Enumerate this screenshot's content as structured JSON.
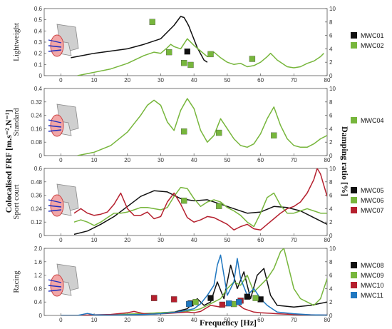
{
  "colors": {
    "black": "#111111",
    "green": "#77b63c",
    "red": "#b5202e",
    "blue": "#1f77c0"
  },
  "chart_data": {
    "type": "line",
    "xlabel": "Frequency [Hz]",
    "ylabel_left": "Colocalised FRF [m.s⁻².N⁻¹]",
    "ylabel_right": "Damping ratio [%]",
    "xlim": [
      -5,
      80
    ],
    "xticks": [
      "0",
      "10",
      "20",
      "30",
      "40",
      "50",
      "60",
      "70",
      "80"
    ],
    "panels": [
      {
        "name": "Lightweight",
        "ylim": [
          0,
          0.6
        ],
        "yticks": [
          "0",
          "0.1",
          "0.2",
          "0.3",
          "0.4",
          "0.5",
          "0.6"
        ],
        "y2lim": [
          0,
          10
        ],
        "y2ticks": [
          "0",
          "2",
          "4",
          "6",
          "8",
          "10"
        ],
        "series": [
          {
            "name": "MWC01",
            "color": "black",
            "x": [
              3,
              10,
              20,
              25,
              30,
              34,
              36,
              37,
              38,
              38.5,
              39,
              41,
              43,
              44
            ],
            "y": [
              0.16,
              0.2,
              0.24,
              0.28,
              0.33,
              0.45,
              0.53,
              0.52,
              0.47,
              0.44,
              0.4,
              0.25,
              0.14,
              0.12
            ]
          },
          {
            "name": "MWC02",
            "color": "green",
            "x": [
              5,
              10,
              15,
              20,
              25,
              28,
              30,
              32,
              33,
              34,
              36,
              38,
              40,
              42,
              44,
              46,
              48,
              50,
              52,
              54,
              56,
              58,
              60,
              62,
              63,
              64,
              65,
              66,
              68,
              70,
              72,
              74,
              76,
              78,
              79
            ],
            "y": [
              0,
              0.03,
              0.06,
              0.11,
              0.18,
              0.21,
              0.2,
              0.25,
              0.28,
              0.26,
              0.24,
              0.33,
              0.27,
              0.22,
              0.17,
              0.21,
              0.16,
              0.12,
              0.1,
              0.11,
              0.08,
              0.09,
              0.12,
              0.17,
              0.2,
              0.17,
              0.14,
              0.12,
              0.08,
              0.07,
              0.08,
              0.11,
              0.13,
              0.17,
              0.2
            ]
          }
        ],
        "markers": [
          {
            "series": "MWC01",
            "x": 38,
            "y": 3.6
          },
          {
            "series": "MWC02",
            "x": 27.5,
            "y": 8
          },
          {
            "series": "MWC02",
            "x": 32.5,
            "y": 3.5
          },
          {
            "series": "MWC02",
            "x": 37,
            "y": 1.9
          },
          {
            "series": "MWC02",
            "x": 39,
            "y": 1.6
          },
          {
            "series": "MWC02",
            "x": 45,
            "y": 3.2
          },
          {
            "series": "MWC02",
            "x": 57.5,
            "y": 2.5
          }
        ]
      },
      {
        "name": "Standard",
        "ylim": [
          0,
          0.4
        ],
        "yticks": [
          "0",
          "0.08",
          "0.16",
          "0.24",
          "0.32",
          "0.4"
        ],
        "y2lim": [
          0,
          10
        ],
        "y2ticks": [
          "0",
          "2",
          "4",
          "6",
          "8",
          "10"
        ],
        "series": [
          {
            "name": "MWC04",
            "color": "green",
            "x": [
              5,
              10,
              15,
              20,
              22,
              24,
              26,
              28,
              30,
              32,
              34,
              36,
              38,
              40,
              42,
              44,
              46,
              48,
              50,
              52,
              54,
              56,
              58,
              60,
              62,
              64,
              66,
              68,
              70,
              72,
              74,
              76,
              78,
              80
            ],
            "y": [
              0,
              0.02,
              0.06,
              0.14,
              0.19,
              0.24,
              0.3,
              0.33,
              0.3,
              0.2,
              0.15,
              0.27,
              0.34,
              0.28,
              0.15,
              0.08,
              0.12,
              0.22,
              0.16,
              0.1,
              0.06,
              0.05,
              0.07,
              0.13,
              0.22,
              0.29,
              0.18,
              0.1,
              0.06,
              0.05,
              0.05,
              0.07,
              0.1,
              0.12
            ]
          }
        ],
        "markers": [
          {
            "series": "MWC04",
            "x": 37,
            "y": 3.6
          },
          {
            "series": "MWC04",
            "x": 47.5,
            "y": 3.4
          },
          {
            "series": "MWC04",
            "x": 64,
            "y": 3.0
          }
        ]
      },
      {
        "name": "Sport court",
        "ylim": [
          0,
          0.6
        ],
        "yticks": [
          "0",
          "0.12",
          "0.24",
          "0.36",
          "0.48",
          "0.6"
        ],
        "y2lim": [
          0,
          10
        ],
        "y2ticks": [
          "0",
          "2",
          "4",
          "6",
          "8",
          "10"
        ],
        "series": [
          {
            "name": "MWC05",
            "color": "black",
            "x": [
              4,
              8,
              12,
              16,
              20,
              24,
              28,
              32,
              36,
              40,
              44,
              48,
              52,
              56,
              60,
              64,
              68,
              72,
              76,
              80
            ],
            "y": [
              0.01,
              0.04,
              0.1,
              0.17,
              0.26,
              0.35,
              0.4,
              0.39,
              0.33,
              0.31,
              0.32,
              0.28,
              0.24,
              0.2,
              0.21,
              0.26,
              0.25,
              0.22,
              0.16,
              0.1
            ]
          },
          {
            "name": "MWC06",
            "color": "green",
            "x": [
              4,
              6,
              8,
              10,
              12,
              14,
              16,
              18,
              20,
              22,
              24,
              26,
              28,
              30,
              32,
              34,
              36,
              38,
              40,
              42,
              44,
              46,
              48,
              50,
              52,
              54,
              56,
              58,
              60,
              62,
              64,
              66,
              68,
              70,
              72,
              74,
              76,
              78,
              80
            ],
            "y": [
              0.12,
              0.14,
              0.12,
              0.09,
              0.12,
              0.16,
              0.2,
              0.2,
              0.21,
              0.23,
              0.25,
              0.25,
              0.24,
              0.23,
              0.25,
              0.35,
              0.43,
              0.42,
              0.33,
              0.26,
              0.3,
              0.32,
              0.3,
              0.25,
              0.22,
              0.18,
              0.12,
              0.08,
              0.2,
              0.34,
              0.38,
              0.27,
              0.2,
              0.2,
              0.22,
              0.24,
              0.22,
              0.2,
              0.2
            ]
          },
          {
            "name": "MWC07",
            "color": "red",
            "x": [
              4,
              6,
              8,
              10,
              12,
              14,
              16,
              18,
              20,
              22,
              24,
              26,
              28,
              30,
              32,
              34,
              36,
              38,
              40,
              42,
              44,
              46,
              48,
              50,
              52,
              54,
              56,
              58,
              60,
              62,
              64,
              66,
              68,
              70,
              72,
              74,
              76,
              77,
              78,
              79,
              80
            ],
            "y": [
              0.2,
              0.24,
              0.2,
              0.18,
              0.19,
              0.21,
              0.28,
              0.38,
              0.24,
              0.18,
              0.18,
              0.21,
              0.15,
              0.17,
              0.3,
              0.38,
              0.28,
              0.16,
              0.12,
              0.14,
              0.17,
              0.16,
              0.13,
              0.1,
              0.05,
              0.08,
              0.1,
              0.06,
              0.05,
              0.1,
              0.15,
              0.2,
              0.24,
              0.26,
              0.3,
              0.38,
              0.5,
              0.6,
              0.55,
              0.45,
              0.35
            ]
          }
        ],
        "markers": [
          {
            "series": "MWC06",
            "x": 37,
            "y": 5.2
          },
          {
            "series": "MWC06",
            "x": 47.5,
            "y": 4.4
          }
        ]
      },
      {
        "name": "Racing",
        "ylim": [
          0,
          2
        ],
        "yticks": [
          "0",
          "0.4",
          "0.8",
          "1.2",
          "1.6",
          "2.0"
        ],
        "y2lim": [
          0,
          10
        ],
        "y2ticks": [
          "0",
          "2",
          "4",
          "6",
          "8",
          "10"
        ],
        "series": [
          {
            "name": "MWC08",
            "color": "black",
            "x": [
              0,
              5,
              10,
              15,
              20,
              25,
              30,
              34,
              38,
              41,
              43,
              45,
              47,
              49,
              51,
              53,
              55,
              57,
              59,
              61,
              63,
              65,
              70,
              75,
              80
            ],
            "y": [
              0,
              0,
              0.01,
              0.02,
              0.03,
              0.05,
              0.08,
              0.1,
              0.2,
              0.5,
              0.3,
              0.4,
              1.0,
              0.5,
              1.5,
              0.8,
              1.3,
              0.5,
              1.2,
              1.4,
              0.6,
              0.3,
              0.25,
              0.3,
              0.4
            ]
          },
          {
            "name": "MWC09",
            "color": "green",
            "x": [
              0,
              5,
              10,
              15,
              20,
              25,
              30,
              35,
              40,
              42,
              44,
              46,
              48,
              50,
              52,
              54,
              56,
              58,
              60,
              62,
              64,
              66,
              67,
              68,
              70,
              72,
              74,
              76,
              78,
              80
            ],
            "y": [
              0,
              0,
              0.01,
              0.02,
              0.04,
              0.06,
              0.08,
              0.1,
              0.15,
              0.2,
              0.3,
              0.4,
              0.5,
              0.8,
              1.0,
              0.9,
              1.2,
              0.7,
              0.9,
              1.1,
              1.4,
              1.9,
              2.0,
              1.6,
              0.8,
              0.5,
              0.4,
              0.3,
              0.5,
              1.1
            ]
          },
          {
            "name": "MWC10",
            "color": "red",
            "x": [
              0,
              5,
              10,
              15,
              20,
              22,
              25,
              28,
              32,
              35,
              38,
              40,
              42,
              45,
              48,
              50,
              53,
              55,
              58,
              60,
              65,
              70,
              75,
              80
            ],
            "y": [
              0,
              0,
              0.02,
              0.03,
              0.08,
              0.12,
              0.05,
              0.04,
              0.06,
              0.08,
              0.1,
              0.08,
              0.12,
              0.3,
              0.25,
              0.3,
              0.35,
              0.2,
              0.1,
              0.08,
              0.05,
              0.03,
              0.02,
              0.01
            ]
          },
          {
            "name": "MWC11",
            "color": "blue",
            "x": [
              0,
              5,
              8,
              10,
              15,
              20,
              25,
              30,
              35,
              40,
              42,
              44,
              46,
              47,
              48,
              49,
              50,
              52,
              53,
              54,
              56,
              58,
              60,
              62,
              65,
              70,
              75,
              80
            ],
            "y": [
              0,
              0,
              0.06,
              0.02,
              0.01,
              0.02,
              0.03,
              0.05,
              0.1,
              0.2,
              0.35,
              0.6,
              0.9,
              1.5,
              1.8,
              1.2,
              0.6,
              1.0,
              1.7,
              1.1,
              0.6,
              0.8,
              0.5,
              0.3,
              0.1,
              0.05,
              0.02,
              0.01
            ]
          }
        ],
        "markers": [
          {
            "series": "MWC08",
            "x": 39,
            "y": 1.8
          },
          {
            "series": "MWC08",
            "x": 45,
            "y": 2.6
          },
          {
            "series": "MWC08",
            "x": 56,
            "y": 2.8
          },
          {
            "series": "MWC08",
            "x": 60,
            "y": 2.4
          },
          {
            "series": "MWC09",
            "x": 28,
            "y": 2.6
          },
          {
            "series": "MWC09",
            "x": 40.5,
            "y": 2.0
          },
          {
            "series": "MWC09",
            "x": 52,
            "y": 1.7
          },
          {
            "series": "MWC09",
            "x": 58.5,
            "y": 2.6
          },
          {
            "series": "MWC10",
            "x": 28,
            "y": 2.6
          },
          {
            "series": "MWC10",
            "x": 34,
            "y": 2.4
          },
          {
            "series": "MWC10",
            "x": 48.5,
            "y": 1.6
          },
          {
            "series": "MWC10",
            "x": 54,
            "y": 2.2
          },
          {
            "series": "MWC11",
            "x": 38.5,
            "y": 1.7
          },
          {
            "series": "MWC11",
            "x": 50.5,
            "y": 1.8
          },
          {
            "series": "MWC11",
            "x": 53.5,
            "y": 2.0
          }
        ]
      }
    ]
  }
}
